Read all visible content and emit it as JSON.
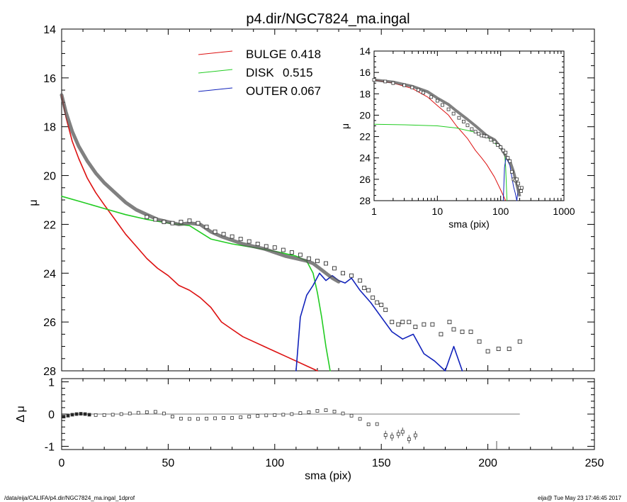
{
  "title": "p4.dir/NGC7824_ma.ingal",
  "footer_left": "/data/eija/CALIFA/p4.dir/NGC7824_ma.ingal_1dprof",
  "footer_right": "eija@  Tue May 23 17:46:45 2017",
  "colors": {
    "bulge": "#dd1111",
    "disk": "#22cc22",
    "outer": "#1122bb",
    "total": "#555555"
  },
  "legend": [
    {
      "label": "BULGE",
      "value": "0.418",
      "color": "#dd1111"
    },
    {
      "label": "DISK",
      "value": "0.515",
      "color": "#22cc22"
    },
    {
      "label": "OUTER",
      "value": "0.067",
      "color": "#1122bb"
    }
  ],
  "chart_data": [
    {
      "type": "line",
      "panel": "main",
      "ylabel": "μ",
      "xlim": [
        0,
        250
      ],
      "ylim": [
        14,
        28
      ],
      "y_inverted": true,
      "yticks": [
        14,
        16,
        18,
        20,
        22,
        24,
        26,
        28
      ],
      "series": [
        {
          "name": "BULGE",
          "color": "#dd1111",
          "x": [
            0,
            2,
            5,
            8,
            12,
            16,
            20,
            25,
            30,
            35,
            40,
            45,
            50,
            55,
            60,
            65,
            70,
            75,
            80,
            85,
            90,
            95,
            100,
            105,
            110,
            115,
            120
          ],
          "y": [
            16.7,
            17.6,
            18.6,
            19.3,
            20.1,
            20.7,
            21.2,
            21.8,
            22.4,
            22.9,
            23.4,
            23.8,
            24.1,
            24.5,
            24.7,
            25.0,
            25.4,
            26.0,
            26.3,
            26.6,
            26.8,
            27.0,
            27.2,
            27.4,
            27.6,
            27.8,
            28.0
          ]
        },
        {
          "name": "DISK",
          "color": "#22cc22",
          "x": [
            0,
            10,
            20,
            30,
            40,
            50,
            60,
            70,
            80,
            90,
            100,
            110,
            115,
            118,
            120,
            122,
            124,
            126
          ],
          "y": [
            20.85,
            21.1,
            21.35,
            21.6,
            21.8,
            21.95,
            22.05,
            22.6,
            22.8,
            22.95,
            23.1,
            23.3,
            23.5,
            24.0,
            24.8,
            25.8,
            27.0,
            28.0
          ]
        },
        {
          "name": "OUTER",
          "color": "#1122bb",
          "x": [
            110,
            112,
            115,
            118,
            121,
            124,
            127,
            130,
            133,
            136,
            140,
            145,
            150,
            155,
            160,
            165,
            170,
            175,
            180,
            184,
            188
          ],
          "y": [
            28.0,
            25.8,
            24.9,
            24.5,
            24.0,
            24.3,
            24.1,
            24.3,
            24.4,
            24.2,
            24.7,
            25.2,
            25.8,
            26.4,
            26.7,
            26.5,
            27.3,
            27.6,
            28.0,
            27.0,
            28.0
          ]
        },
        {
          "name": "TOTAL",
          "color": "#555555",
          "x": [
            0,
            2,
            5,
            8,
            12,
            16,
            20,
            25,
            30,
            35,
            40,
            45,
            50,
            55,
            60,
            65,
            70,
            75,
            80,
            85,
            90,
            95,
            100,
            105,
            110,
            115,
            118,
            121,
            124,
            127,
            130
          ],
          "y": [
            16.7,
            17.4,
            18.2,
            18.8,
            19.4,
            19.9,
            20.3,
            20.7,
            21.1,
            21.4,
            21.6,
            21.8,
            21.9,
            22.0,
            21.95,
            22.0,
            22.3,
            22.5,
            22.65,
            22.8,
            22.9,
            23.0,
            23.15,
            23.3,
            23.4,
            23.5,
            23.6,
            23.8,
            24.0,
            24.2,
            24.35
          ]
        }
      ],
      "points": {
        "x": [
          40,
          44,
          48,
          52,
          56,
          60,
          64,
          68,
          72,
          76,
          80,
          84,
          88,
          92,
          96,
          100,
          104,
          108,
          112,
          116,
          120,
          124,
          128,
          132,
          136,
          140,
          142,
          144,
          146,
          148,
          150,
          152,
          155,
          158,
          160,
          163,
          166,
          170,
          174,
          178,
          182,
          184,
          188,
          192,
          196,
          200,
          205,
          210,
          215
        ],
        "y": [
          21.7,
          21.8,
          21.9,
          21.95,
          21.9,
          21.85,
          21.95,
          22.1,
          22.3,
          22.4,
          22.5,
          22.6,
          22.7,
          22.8,
          22.9,
          22.95,
          23.05,
          23.15,
          23.25,
          23.4,
          23.5,
          23.6,
          23.8,
          24.0,
          24.1,
          24.3,
          24.6,
          24.7,
          25.0,
          25.2,
          25.3,
          25.5,
          26.0,
          26.1,
          26.0,
          26.0,
          26.2,
          26.1,
          26.1,
          26.5,
          26.0,
          26.3,
          26.4,
          26.4,
          26.8,
          27.2,
          27.1,
          27.1,
          26.8
        ]
      }
    },
    {
      "type": "line",
      "panel": "inset",
      "xlabel": "sma (pix)",
      "ylabel": "μ",
      "x_scale": "log",
      "xlim": [
        1,
        1000
      ],
      "ylim": [
        14,
        28
      ],
      "y_inverted": true,
      "xticks": [
        "1",
        "10",
        "100",
        "1000"
      ],
      "yticks": [
        14,
        16,
        18,
        20,
        22,
        24,
        26,
        28
      ],
      "series": [
        {
          "name": "BULGE",
          "color": "#dd1111",
          "x": [
            1,
            2,
            4,
            7,
            10,
            15,
            20,
            30,
            40,
            50,
            60,
            80,
            100,
            120
          ],
          "y": [
            16.7,
            17.0,
            17.5,
            18.3,
            19.1,
            20.0,
            21.0,
            22.2,
            23.3,
            24.0,
            24.6,
            25.8,
            27.0,
            28.0
          ]
        },
        {
          "name": "DISK",
          "color": "#22cc22",
          "x": [
            1,
            3,
            10,
            20,
            40,
            60,
            80,
            100,
            115,
            120,
            126
          ],
          "y": [
            20.85,
            20.9,
            21.0,
            21.2,
            21.6,
            22.0,
            22.6,
            23.1,
            23.5,
            24.8,
            28.0
          ]
        },
        {
          "name": "OUTER",
          "color": "#1122bb",
          "x": [
            110,
            115,
            121,
            130,
            140,
            150,
            160,
            170,
            180,
            188
          ],
          "y": [
            28.0,
            24.9,
            24.0,
            24.3,
            24.7,
            25.8,
            26.7,
            27.3,
            28.0,
            27.0
          ]
        },
        {
          "name": "TOTAL",
          "color": "#555555",
          "x": [
            1,
            2,
            4,
            7,
            10,
            15,
            20,
            30,
            40,
            50,
            60,
            80,
            100,
            120,
            140,
            160,
            180,
            200
          ],
          "y": [
            16.7,
            16.9,
            17.3,
            17.8,
            18.4,
            19.0,
            19.6,
            20.4,
            21.0,
            21.5,
            21.9,
            22.3,
            23.0,
            23.8,
            24.3,
            25.3,
            26.5,
            27.6
          ]
        }
      ],
      "points": {
        "x": [
          1,
          1.5,
          2,
          3,
          4,
          5,
          6,
          8,
          10,
          12,
          15,
          18,
          22,
          26,
          30,
          35,
          40,
          45,
          50,
          55,
          60,
          70,
          80,
          90,
          100,
          110,
          120,
          130,
          140,
          150,
          160,
          170,
          180,
          190,
          200,
          210,
          215
        ],
        "y": [
          16.7,
          16.85,
          17.0,
          17.2,
          17.4,
          17.65,
          17.9,
          18.3,
          18.65,
          19.05,
          19.45,
          19.85,
          20.25,
          20.6,
          20.95,
          21.3,
          21.55,
          21.75,
          21.9,
          21.95,
          22.0,
          22.3,
          22.5,
          22.8,
          23.0,
          23.3,
          23.5,
          24.0,
          24.3,
          25.3,
          26.0,
          26.1,
          26.0,
          26.4,
          26.8,
          27.1,
          26.8
        ]
      }
    },
    {
      "type": "scatter",
      "panel": "residual",
      "xlabel": "sma (pix)",
      "ylabel": "Δ μ",
      "xlim": [
        0,
        250
      ],
      "ylim": [
        -1.1,
        1.1
      ],
      "xticks": [
        0,
        50,
        100,
        150,
        200,
        250
      ],
      "yticks": [
        1,
        0,
        -1
      ],
      "zero_line_x": [
        0,
        215
      ],
      "x": [
        1,
        3,
        5,
        7,
        9,
        11,
        13,
        16,
        20,
        24,
        28,
        32,
        36,
        40,
        44,
        48,
        52,
        56,
        60,
        64,
        68,
        72,
        76,
        80,
        84,
        88,
        92,
        96,
        100,
        104,
        108,
        112,
        116,
        120,
        124,
        128,
        132,
        136,
        140,
        144,
        148,
        152,
        155,
        158,
        160,
        163,
        166
      ],
      "y": [
        -0.08,
        -0.05,
        -0.02,
        0.0,
        0.01,
        0.0,
        -0.02,
        -0.03,
        -0.03,
        -0.02,
        0.0,
        0.02,
        0.04,
        0.06,
        0.07,
        0.02,
        -0.08,
        -0.14,
        -0.15,
        -0.15,
        -0.14,
        -0.13,
        -0.12,
        -0.12,
        -0.1,
        -0.08,
        -0.06,
        -0.04,
        -0.03,
        -0.02,
        0.0,
        0.03,
        0.06,
        0.1,
        0.12,
        0.08,
        0.02,
        -0.05,
        -0.15,
        -0.32,
        -0.31,
        -0.65,
        -0.7,
        -0.62,
        -0.55,
        -0.78,
        -0.66
      ]
    }
  ]
}
